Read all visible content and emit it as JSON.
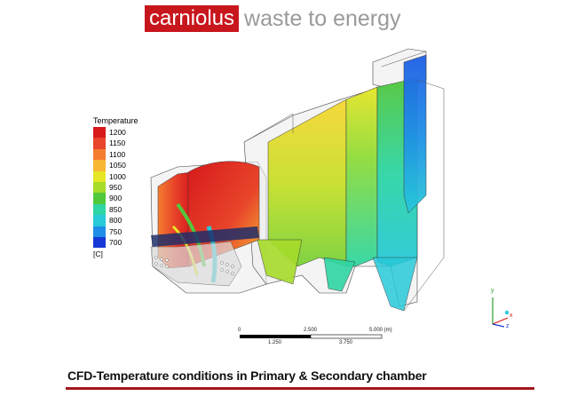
{
  "logo": {
    "brand": "carniolus",
    "tagline": "waste to energy"
  },
  "legend": {
    "title": "Temperature",
    "unit": "[C]",
    "entries": [
      {
        "label": "1200",
        "color": "#d7191c"
      },
      {
        "label": "1150",
        "color": "#e8452a"
      },
      {
        "label": "1100",
        "color": "#f47d30"
      },
      {
        "label": "1050",
        "color": "#f7b733"
      },
      {
        "label": "1000",
        "color": "#e6e626"
      },
      {
        "label": "950",
        "color": "#a6dc2a"
      },
      {
        "label": "900",
        "color": "#52c83c"
      },
      {
        "label": "850",
        "color": "#2fd6a4"
      },
      {
        "label": "800",
        "color": "#28c9d9"
      },
      {
        "label": "750",
        "color": "#1f8ee6"
      },
      {
        "label": "700",
        "color": "#1638d6"
      }
    ]
  },
  "scale_bar": {
    "top_labels": [
      "0",
      "2.500",
      "5.000 (m)"
    ],
    "bottom_labels": [
      "1.250",
      "3.750"
    ]
  },
  "axes": {
    "x": "x",
    "y": "y",
    "z": "z"
  },
  "caption": "CFD-Temperature conditions in Primary & Secondary chamber"
}
